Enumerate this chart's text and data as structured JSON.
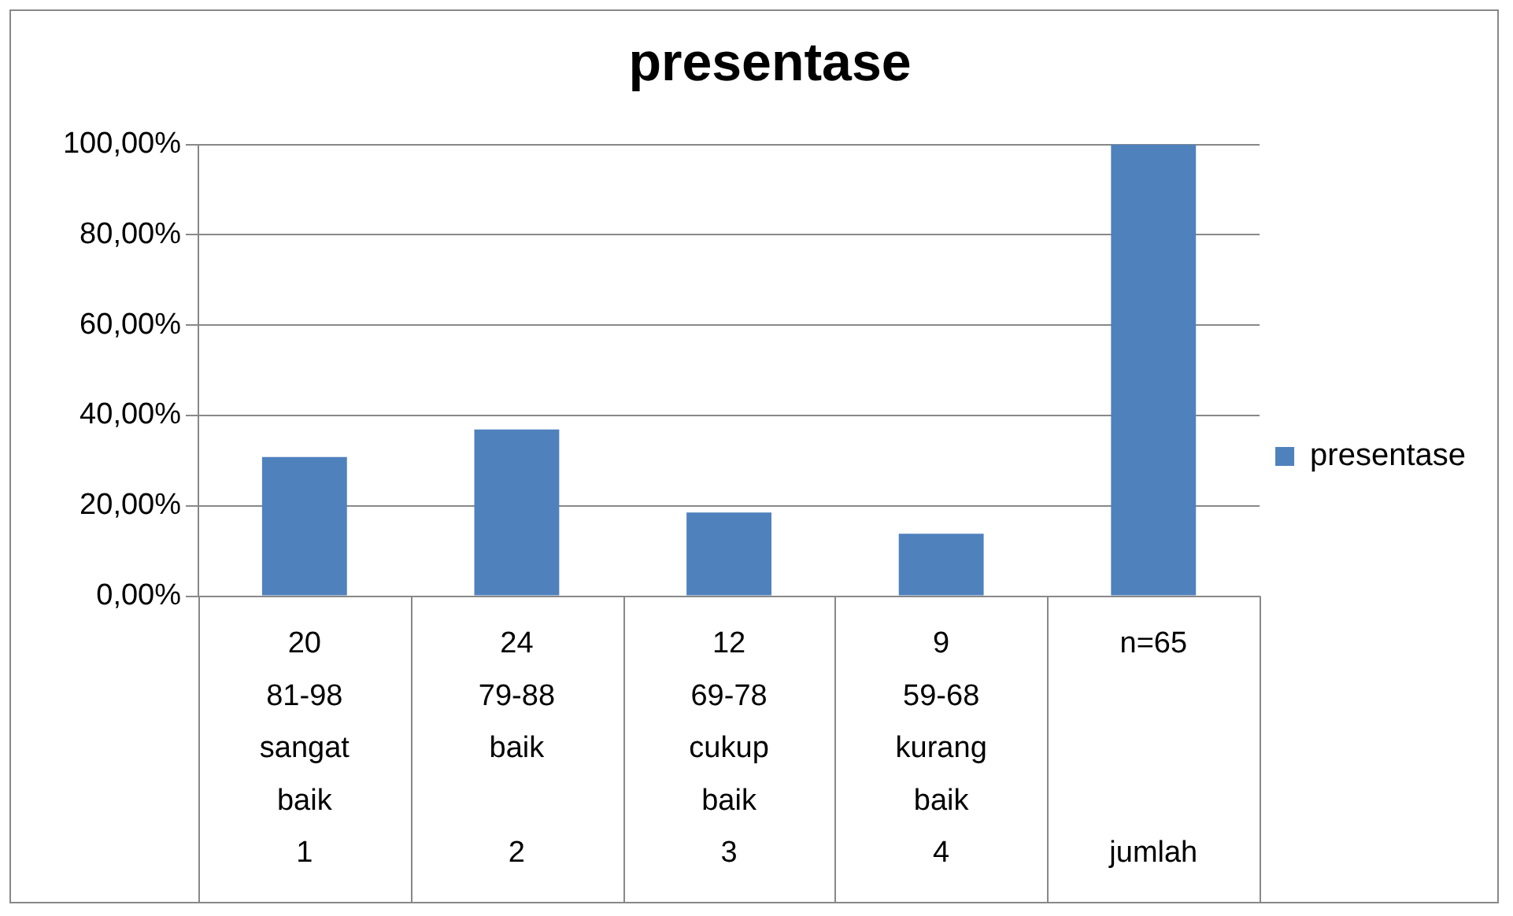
{
  "chart_data": {
    "type": "bar",
    "title": "presentase",
    "categories": [
      "20\n81-98\nsangat\nbaik\n1",
      "24\n79-88\nbaik\n\n2",
      "12\n69-78\ncukup\nbaik\n3",
      "9\n59-68\nkurang\nbaik\n4",
      "n=65\n\n\n\njumlah"
    ],
    "series": [
      {
        "name": "presentase",
        "color": "#4f81bd",
        "values": [
          30.8,
          36.9,
          18.5,
          13.8,
          100
        ]
      }
    ],
    "ylim": [
      0,
      100
    ],
    "yticks": [
      {
        "value": 0,
        "label": "0,00%"
      },
      {
        "value": 20,
        "label": "20,00%"
      },
      {
        "value": 40,
        "label": "40,00%"
      },
      {
        "value": 60,
        "label": "60,00%"
      },
      {
        "value": 80,
        "label": "80,00%"
      },
      {
        "value": 100,
        "label": "100,00%"
      }
    ],
    "grid": "y",
    "legend": "right"
  }
}
